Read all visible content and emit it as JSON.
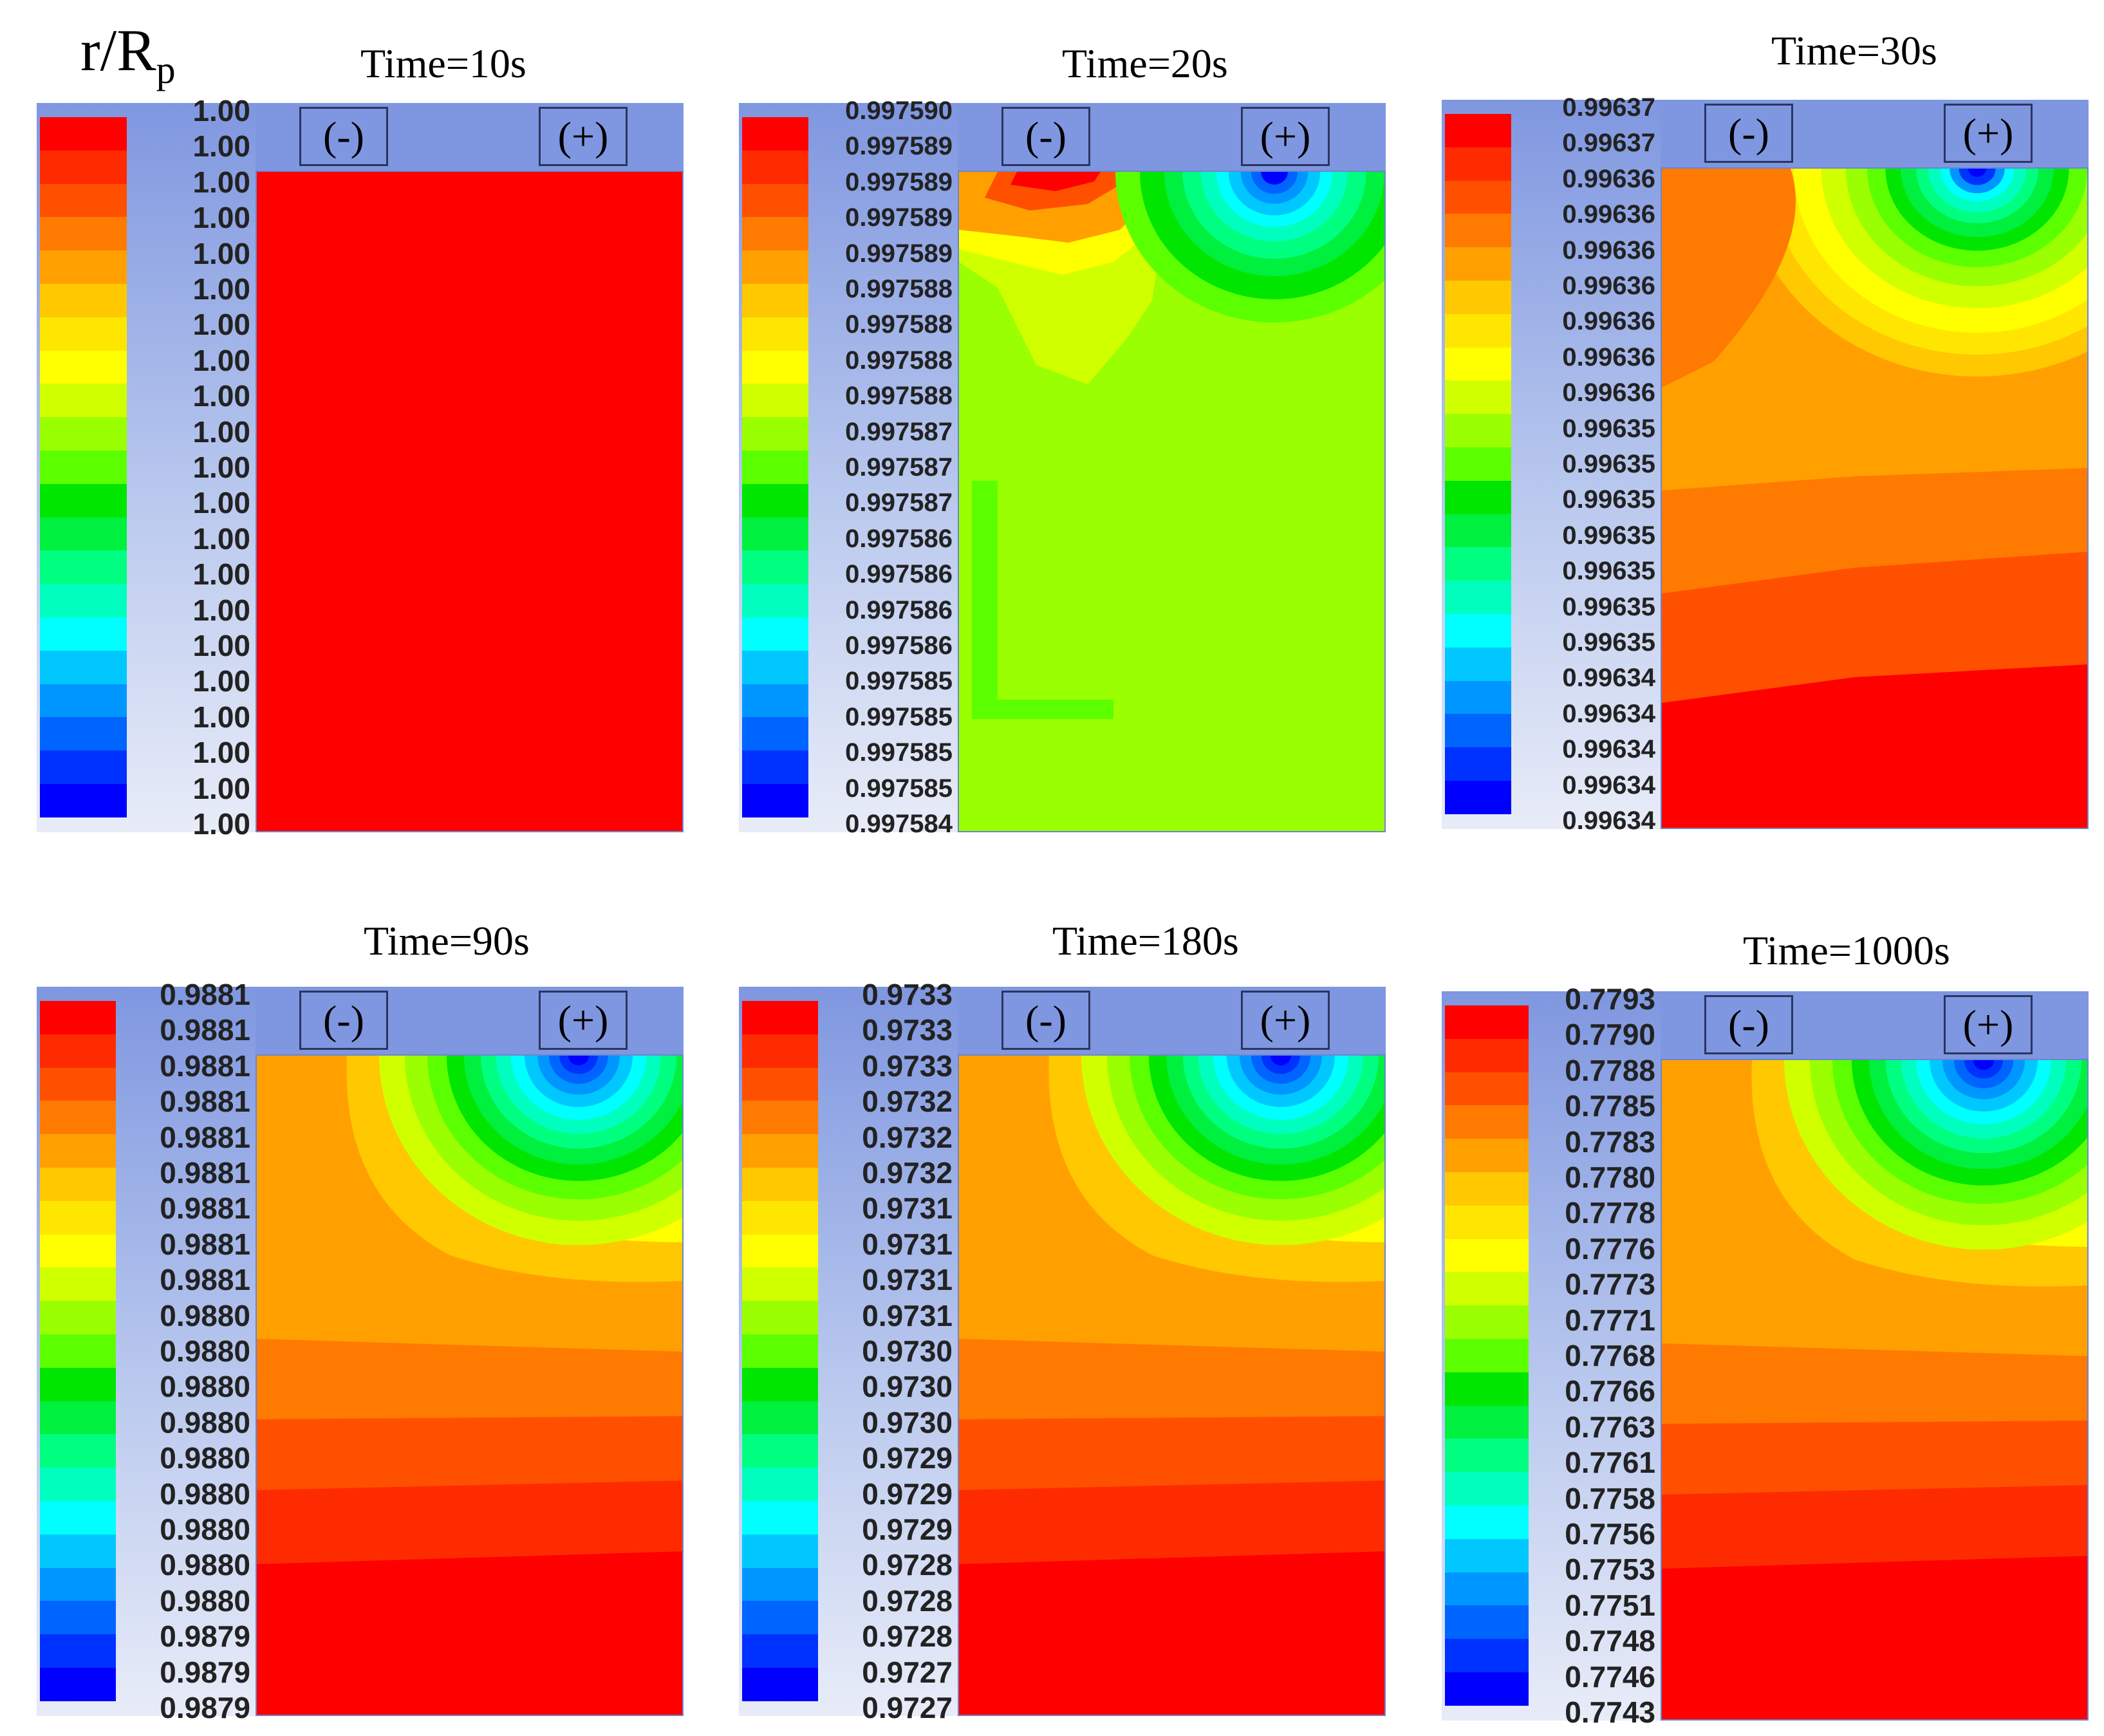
{
  "figure": {
    "variable_label": "r/R",
    "variable_subscript": "p",
    "colors": [
      "#ff0000",
      "#ff2b00",
      "#ff5000",
      "#ff7a00",
      "#ffa000",
      "#ffc800",
      "#ffe600",
      "#ffff00",
      "#d0ff00",
      "#9aff00",
      "#5cff00",
      "#00e600",
      "#00f040",
      "#00ff80",
      "#00ffbf",
      "#00ffff",
      "#00c8ff",
      "#0096ff",
      "#0064ff",
      "#0032ff",
      "#0000ff"
    ],
    "panels": [
      {
        "title": "Time=10s",
        "neg_label": "(-)",
        "pos_label": "(+)",
        "pattern": "uniform",
        "legend": [
          "1.00",
          "1.00",
          "1.00",
          "1.00",
          "1.00",
          "1.00",
          "1.00",
          "1.00",
          "1.00",
          "1.00",
          "1.00",
          "1.00",
          "1.00",
          "1.00",
          "1.00",
          "1.00",
          "1.00",
          "1.00",
          "1.00",
          "1.00",
          "1.00"
        ]
      },
      {
        "title": "Time=20s",
        "neg_label": "(-)",
        "pos_label": "(+)",
        "pattern": "early",
        "legend": [
          "0.997590",
          "0.997589",
          "0.997589",
          "0.997589",
          "0.997589",
          "0.997588",
          "0.997588",
          "0.997588",
          "0.997588",
          "0.997587",
          "0.997587",
          "0.997587",
          "0.997586",
          "0.997586",
          "0.997586",
          "0.997586",
          "0.997585",
          "0.997585",
          "0.997585",
          "0.997585",
          "0.997584"
        ]
      },
      {
        "title": "Time=30s",
        "neg_label": "(-)",
        "pos_label": "(+)",
        "pattern": "t30",
        "legend": [
          "0.99637",
          "0.99637",
          "0.99636",
          "0.99636",
          "0.99636",
          "0.99636",
          "0.99636",
          "0.99636",
          "0.99636",
          "0.99635",
          "0.99635",
          "0.99635",
          "0.99635",
          "0.99635",
          "0.99635",
          "0.99635",
          "0.99634",
          "0.99634",
          "0.99634",
          "0.99634",
          "0.99634"
        ]
      },
      {
        "title": "Time=90s",
        "neg_label": "(-)",
        "pos_label": "(+)",
        "pattern": "late",
        "legend": [
          "0.9881",
          "0.9881",
          "0.9881",
          "0.9881",
          "0.9881",
          "0.9881",
          "0.9881",
          "0.9881",
          "0.9881",
          "0.9880",
          "0.9880",
          "0.9880",
          "0.9880",
          "0.9880",
          "0.9880",
          "0.9880",
          "0.9880",
          "0.9880",
          "0.9879",
          "0.9879",
          "0.9879"
        ]
      },
      {
        "title": "Time=180s",
        "neg_label": "(-)",
        "pos_label": "(+)",
        "pattern": "late",
        "legend": [
          "0.9733",
          "0.9733",
          "0.9733",
          "0.9732",
          "0.9732",
          "0.9732",
          "0.9731",
          "0.9731",
          "0.9731",
          "0.9731",
          "0.9730",
          "0.9730",
          "0.9730",
          "0.9729",
          "0.9729",
          "0.9729",
          "0.9728",
          "0.9728",
          "0.9728",
          "0.9727",
          "0.9727"
        ]
      },
      {
        "title": "Time=1000s",
        "neg_label": "(-)",
        "pos_label": "(+)",
        "pattern": "late",
        "legend": [
          "0.7793",
          "0.7790",
          "0.7788",
          "0.7785",
          "0.7783",
          "0.7780",
          "0.7778",
          "0.7776",
          "0.7773",
          "0.7771",
          "0.7768",
          "0.7766",
          "0.7763",
          "0.7761",
          "0.7758",
          "0.7756",
          "0.7753",
          "0.7751",
          "0.7748",
          "0.7746",
          "0.7743"
        ]
      }
    ]
  }
}
